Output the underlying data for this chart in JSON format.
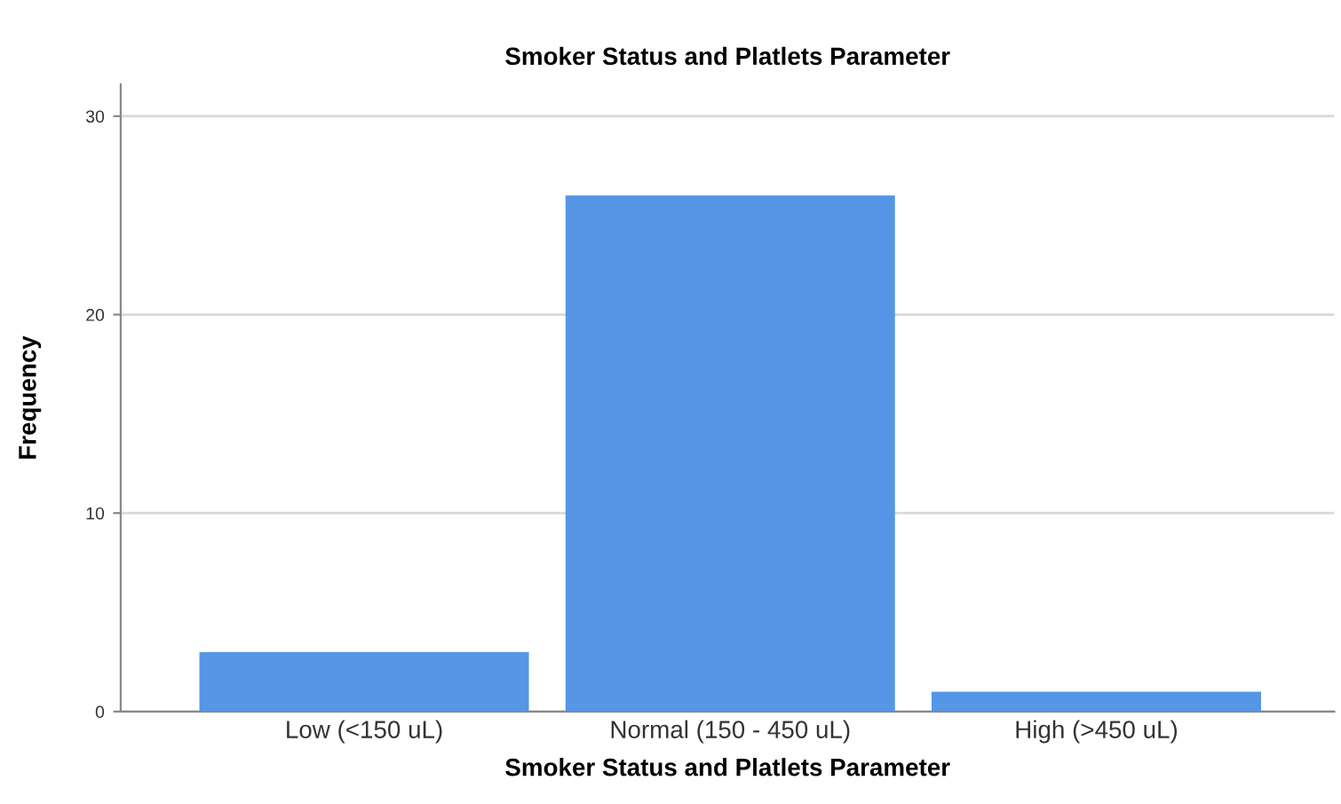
{
  "chart_data": {
    "type": "bar",
    "title": "Smoker Status and Platlets Parameter",
    "xlabel": "Smoker Status and Platlets Parameter",
    "ylabel": "Frequency",
    "categories": [
      "Low (<150 uL)",
      "Normal (150 - 450 uL)",
      "High (>450 uL)"
    ],
    "values": [
      3,
      26,
      1
    ],
    "color": "#5596e6",
    "ylim": [
      0,
      31.6
    ],
    "yticks": [
      0,
      10,
      20,
      30
    ],
    "grid": "y",
    "legend": false
  }
}
